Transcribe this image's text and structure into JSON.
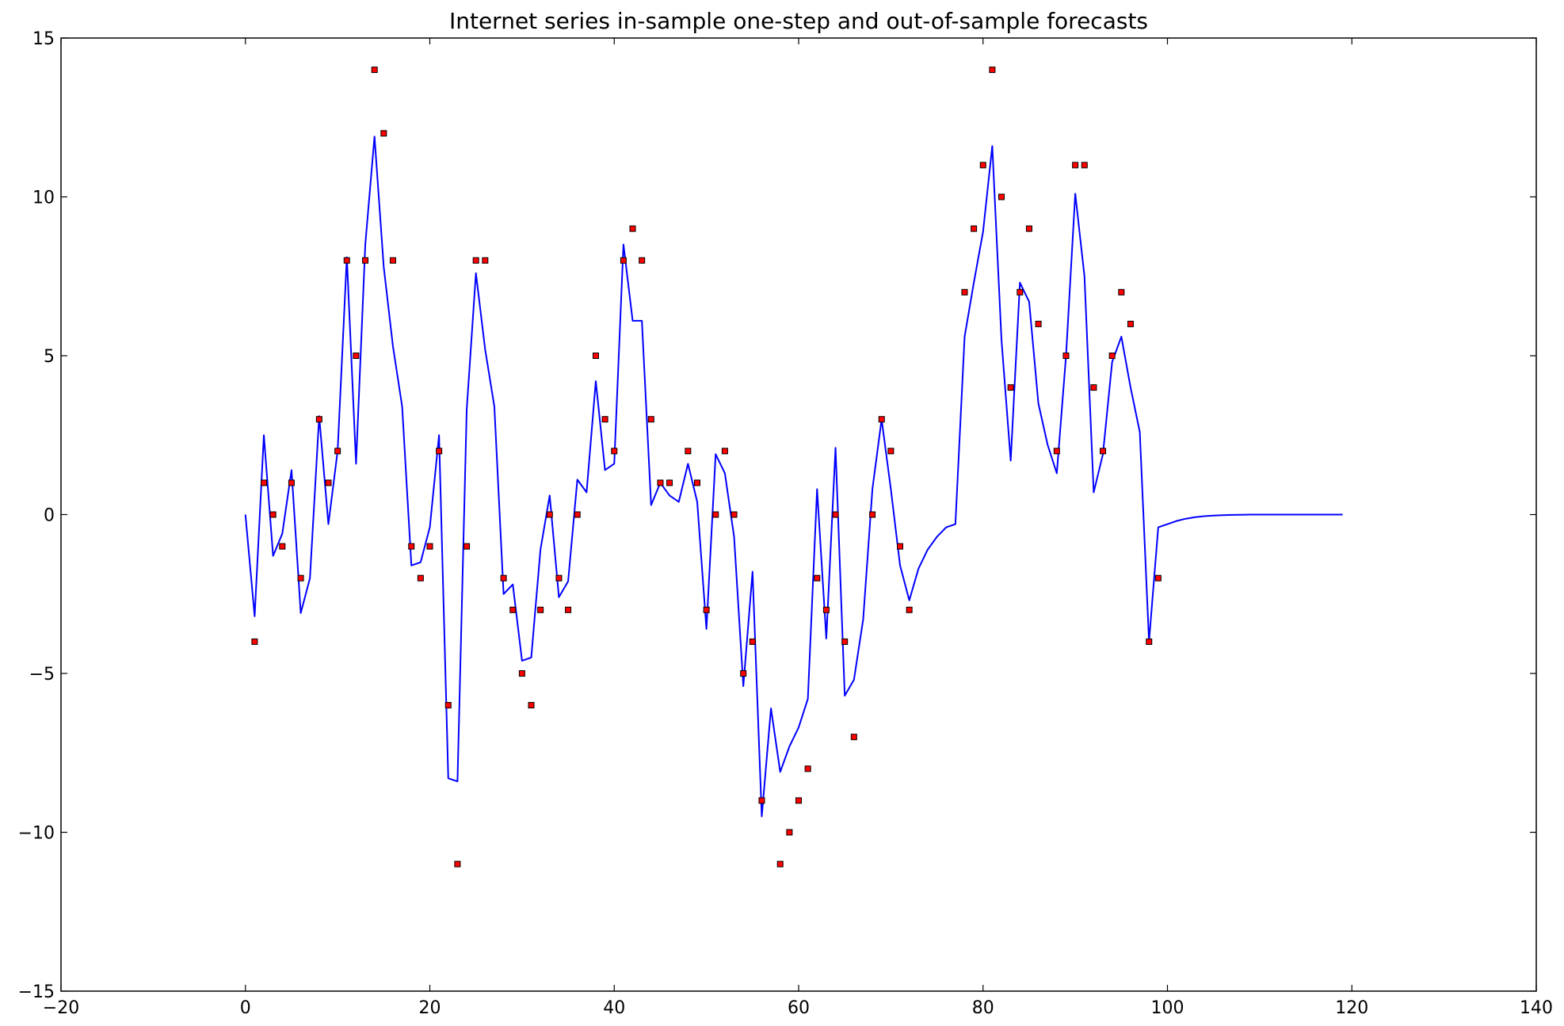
{
  "chart_data": {
    "type": "line",
    "title": "Internet series in-sample one-step and out-of-sample forecasts",
    "xlabel": "",
    "ylabel": "",
    "xlim": [
      -20,
      140
    ],
    "ylim": [
      -15,
      15
    ],
    "xticks": [
      -20,
      0,
      20,
      40,
      60,
      80,
      100,
      120,
      140
    ],
    "yticks": [
      -15,
      -10,
      -5,
      0,
      5,
      10,
      15
    ],
    "grid": false,
    "legend": "none",
    "series": [
      {
        "kind": "line",
        "color": "#0000ff",
        "x": [
          0,
          1,
          2,
          3,
          4,
          5,
          6,
          7,
          8,
          9,
          10,
          11,
          12,
          13,
          14,
          15,
          16,
          17,
          18,
          19,
          20,
          21,
          22,
          23,
          24,
          25,
          26,
          27,
          28,
          29,
          30,
          31,
          32,
          33,
          34,
          35,
          36,
          37,
          38,
          39,
          40,
          41,
          42,
          43,
          44,
          45,
          46,
          47,
          48,
          49,
          50,
          51,
          52,
          53,
          54,
          55,
          56,
          57,
          58,
          59,
          60,
          61,
          62,
          63,
          64,
          65,
          66,
          67,
          68,
          69,
          70,
          71,
          72,
          73,
          74,
          75,
          76,
          77,
          78,
          79,
          80,
          81,
          82,
          83,
          84,
          85,
          86,
          87,
          88,
          89,
          90,
          91,
          92,
          93,
          94,
          95,
          96,
          97,
          98,
          99,
          100,
          101,
          102,
          103,
          104,
          105,
          106,
          107,
          108,
          109,
          110,
          111,
          112,
          113,
          114,
          115,
          116,
          117,
          118,
          119
        ],
        "y": [
          0,
          -3.2,
          2.5,
          -1.3,
          -0.6,
          1.4,
          -3.1,
          -2.0,
          3.1,
          -0.3,
          2.0,
          8.1,
          1.6,
          8.5,
          11.9,
          7.8,
          5.3,
          3.4,
          -1.6,
          -1.5,
          -0.4,
          2.5,
          -8.3,
          -8.4,
          3.3,
          7.6,
          5.2,
          3.4,
          -2.5,
          -2.2,
          -4.6,
          -4.5,
          -1.1,
          0.6,
          -2.6,
          -2.1,
          1.1,
          0.7,
          4.2,
          1.4,
          1.6,
          8.5,
          6.1,
          6.1,
          0.3,
          1.0,
          0.6,
          0.4,
          1.6,
          0.4,
          -3.6,
          1.9,
          1.3,
          -0.7,
          -5.4,
          -1.8,
          -9.5,
          -6.1,
          -8.1,
          -7.3,
          -6.7,
          -5.8,
          0.8,
          -3.9,
          2.1,
          -5.7,
          -5.2,
          -3.3,
          0.8,
          3.0,
          0.8,
          -1.6,
          -2.7,
          -1.7,
          -1.1,
          -0.7,
          -0.4,
          -0.3,
          5.6,
          7.3,
          8.9,
          11.6,
          5.5,
          1.7,
          7.3,
          6.7,
          3.5,
          2.2,
          1.3,
          5.0,
          10.1,
          7.5,
          0.7,
          1.9,
          4.8,
          5.6,
          4.0,
          2.6,
          -4.0,
          -0.4,
          -0.3,
          -0.2,
          -0.13,
          -0.08,
          -0.05,
          -0.03,
          -0.02,
          -0.01,
          -0.005,
          0,
          0,
          0,
          0,
          0,
          0,
          0,
          0,
          0,
          0,
          0
        ]
      },
      {
        "kind": "scatter",
        "color": "#ff0000",
        "marker": "square",
        "x": [
          1,
          2,
          3,
          4,
          5,
          6,
          8,
          9,
          10,
          11,
          12,
          13,
          14,
          15,
          16,
          18,
          19,
          20,
          21,
          22,
          23,
          24,
          25,
          26,
          28,
          29,
          30,
          31,
          32,
          33,
          34,
          35,
          36,
          38,
          39,
          40,
          41,
          42,
          43,
          44,
          45,
          46,
          48,
          49,
          50,
          51,
          52,
          53,
          54,
          55,
          56,
          58,
          59,
          60,
          61,
          62,
          63,
          64,
          65,
          66,
          68,
          69,
          70,
          71,
          72,
          78,
          79,
          80,
          81,
          82,
          83,
          84,
          85,
          86,
          88,
          89,
          90,
          91,
          92,
          93,
          94,
          95,
          96,
          98,
          99
        ],
        "y": [
          -4,
          1,
          0,
          -1,
          1,
          -2,
          3,
          1,
          2,
          8,
          5,
          8,
          14,
          12,
          8,
          -1,
          -2,
          -1,
          2,
          -6,
          -11,
          -1,
          8,
          8,
          -2,
          -3,
          -5,
          -6,
          -3,
          0,
          -2,
          -3,
          0,
          5,
          3,
          2,
          8,
          9,
          8,
          3,
          1,
          1,
          2,
          1,
          -3,
          0,
          2,
          0,
          -5,
          -4,
          -9,
          -11,
          -10,
          -9,
          -8,
          -2,
          -3,
          0,
          -4,
          -7,
          0,
          3,
          2,
          -1,
          -3,
          7,
          9,
          11,
          14,
          10,
          4,
          7,
          9,
          6,
          2,
          5,
          11,
          11,
          4,
          2,
          5,
          7,
          6,
          -4,
          -2
        ]
      }
    ]
  }
}
